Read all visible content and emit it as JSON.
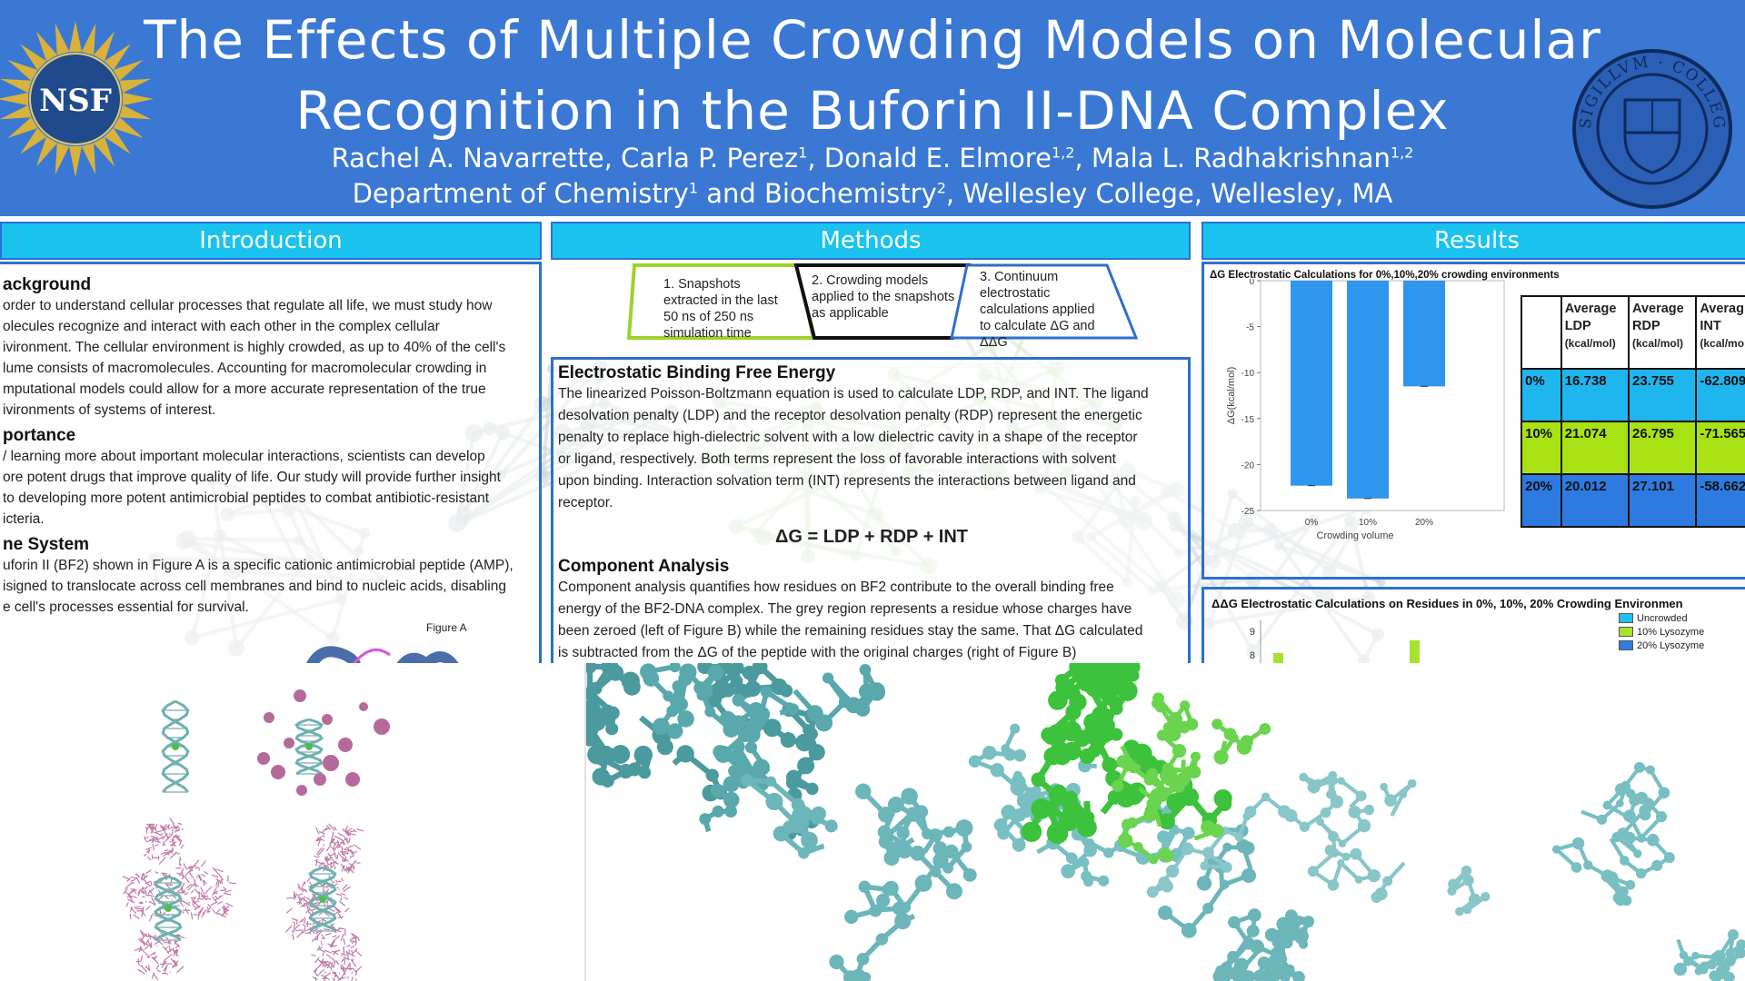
{
  "header": {
    "title_line1": "The Effects of Multiple Crowding Models on Molecular",
    "title_line2": "Recognition in the Buforin II-DNA Complex",
    "authors": [
      {
        "name": "Rachel A. Navarrette, ",
        "sup": ""
      },
      {
        "name": "Carla P. Perez",
        "sup": "1"
      },
      {
        "name": ", Donald E. Elmore",
        "sup": "1,2"
      },
      {
        "name": ", Mala L. Radhakrishnan",
        "sup": "1,2"
      }
    ],
    "affiliation": [
      {
        "text": "Department of Chemistry",
        "sup": "1"
      },
      {
        "text": " and Biochemistry",
        "sup": "2"
      },
      {
        "text": ", Wellesley College, Wellesley, MA",
        "sup": ""
      }
    ],
    "nsf_logo_text": "NSF",
    "seal_logo_text": "SIGILLVM · COLLEGII · WELLESLEIANI"
  },
  "introduction": {
    "heading": "Introduction",
    "background_title": "ackground",
    "background_lines": [
      "order to understand cellular processes that regulate all life, we must study how",
      "olecules recognize and interact with each other in the complex cellular",
      "ivironment. The cellular environment is highly crowded, as up to 40% of the cell's",
      "lume consists of macromolecules. Accounting for macromolecular crowding in",
      "mputational models could allow for a more accurate representation of the true",
      "ivironments of systems of interest."
    ],
    "importance_title": "portance",
    "importance_lines": [
      "/ learning more about important molecular interactions, scientists can develop",
      "ore potent drugs that improve quality of life. Our study will provide further insight",
      "to developing more potent antimicrobial peptides to combat antibiotic-resistant",
      "icteria."
    ],
    "system_title": "ne System",
    "system_lines": [
      "uforin II (BF2) shown in Figure A is a specific cationic antimicrobial peptide (AMP),",
      "isigned to translocate across cell membranes and bind to nucleic acids, disabling",
      "e cell's processes essential for survival."
    ],
    "figure_label": "Figure A"
  },
  "methods": {
    "heading": "Methods",
    "steps": [
      "1. Snapshots extracted in the last 50 ns of 250 ns simulation time",
      "2. Crowding models applied to the snapshots as applicable",
      "3. Continuum electrostatic calculations applied to calculate ΔG and ΔΔG"
    ],
    "step1_lines": [
      "1. Snapshots",
      "extracted in the last",
      "50 ns of 250 ns",
      "simulation time"
    ],
    "step2_lines": [
      "2. Crowding models",
      "applied to the snapshots",
      "as applicable"
    ],
    "step3_lines": [
      "3. Continuum",
      "electrostatic",
      "calculations applied",
      "to calculate ΔG and",
      "ΔΔG"
    ],
    "ebfe_title": "Electrostatic Binding Free Energy",
    "ebfe_lines": [
      "The linearized Poisson-Boltzmann equation is used to calculate LDP, RDP, and INT. The ligand",
      "desolvation penalty (LDP) and the receptor desolvation penalty (RDP) represent the energetic",
      "penalty to replace high-dielectric solvent with a low dielectric cavity in a shape of the receptor",
      "or ligand, respectively. Both terms represent the loss of favorable interactions with solvent",
      "upon binding. Interaction solvation term (INT) represents the interactions between ligand and",
      "receptor."
    ],
    "equation": "ΔG = LDP + RDP + INT",
    "component_title": "Component Analysis",
    "component_lines": [
      "Component analysis quantifies how residues on BF2 contribute to the overall binding free",
      "energy of the BF2-DNA complex. The grey region represents a residue whose charges have",
      "been zeroed (left of Figure B) while the remaining residues stay the same. That ΔG calculated",
      "is subtracted from the ΔG of the peptide with the original charges (right of Figure B)"
    ]
  },
  "results": {
    "heading": "Results",
    "table": {
      "headers": [
        {
          "line1": "",
          "line2": "",
          "unit": ""
        },
        {
          "line1": "Average",
          "line2": "LDP",
          "unit": "(kcal/mol)"
        },
        {
          "line1": "Average",
          "line2": "RDP",
          "unit": "(kcal/mol)"
        },
        {
          "line1": "Averag",
          "line2": "INT",
          "unit": "(kcal/mo"
        }
      ],
      "rows": [
        [
          "0%",
          "16.738",
          "23.755",
          "-62.809"
        ],
        [
          "10%",
          "21.074",
          "26.795",
          "-71.565"
        ],
        [
          "20%",
          "20.012",
          "27.101",
          "-58.662"
        ]
      ]
    },
    "legend": [
      "Uncrowded",
      "10% Lysozyme",
      "20% Lysozyme"
    ]
  },
  "chart_data": [
    {
      "type": "bar",
      "title": "ΔG Electrostatic Calculations for 0%,10%,20% crowding environments",
      "categories": [
        "0%",
        "10%",
        "20%"
      ],
      "values": [
        -22.3,
        -23.7,
        -11.5
      ],
      "xlabel": "Crowding volume",
      "ylabel": "ΔG(kcal/mol)",
      "ylim": [
        -25,
        0
      ],
      "yticks": [
        0,
        -5,
        -10,
        -15,
        -20,
        -25
      ],
      "color": "#2f96ee"
    },
    {
      "type": "bar",
      "title": "ΔΔG Electrostatic Calculations on Residues in 0%, 10%, 20% Crowding Environmen",
      "yticks": [
        9,
        8
      ],
      "series": [
        {
          "name": "Uncrowded",
          "color": "#23c0ee"
        },
        {
          "name": "10% Lysozyme",
          "color": "#a6e22e"
        },
        {
          "name": "20% Lysozyme",
          "color": "#2e7de0"
        }
      ]
    }
  ],
  "colors": {
    "banner": "#3a78d4",
    "section_header": "#19c3ee",
    "panel_border": "#2d6fd0",
    "row_0pct": "#1fb5ee",
    "row_10pct": "#a9e214",
    "row_20pct": "#2d7be0"
  }
}
